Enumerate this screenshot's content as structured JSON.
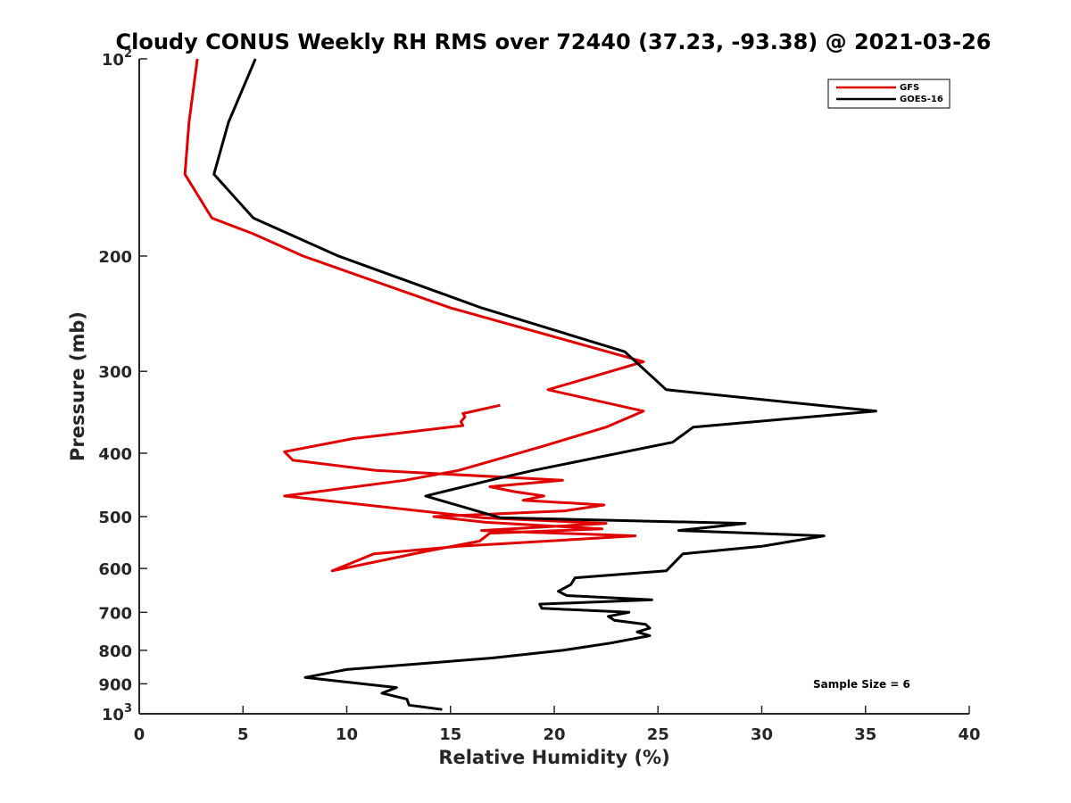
{
  "chart_data": {
    "type": "line",
    "title": "Cloudy CONUS Weekly RH RMS over 72440 (37.23, -93.38) @ 2021-03-26",
    "xlabel": "Relative Humidity (%)",
    "ylabel": "Pressure (mb)",
    "xlim": [
      0,
      40
    ],
    "ylim": [
      100,
      1000
    ],
    "y_scale": "log",
    "y_reversed": true,
    "x_ticks": [
      "0",
      "5",
      "10",
      "15",
      "20",
      "25",
      "30",
      "35",
      "40"
    ],
    "y_ticks": [
      {
        "value": 100,
        "base": "10",
        "exp": "2"
      },
      {
        "value": 200,
        "label": "200"
      },
      {
        "value": 300,
        "label": "300"
      },
      {
        "value": 400,
        "label": "400"
      },
      {
        "value": 500,
        "label": "500"
      },
      {
        "value": 600,
        "label": "600"
      },
      {
        "value": 700,
        "label": "700"
      },
      {
        "value": 800,
        "label": "800"
      },
      {
        "value": 900,
        "label": "900"
      },
      {
        "value": 1000,
        "base": "10",
        "exp": "3"
      }
    ],
    "grid": false,
    "legend": "top-right",
    "series": [
      {
        "name": "GFS",
        "color": "#e00000",
        "points": [
          [
            2.8,
            100
          ],
          [
            2.4,
            125
          ],
          [
            2.2,
            150
          ],
          [
            3.5,
            175
          ],
          [
            5.5,
            185
          ],
          [
            7.9,
            200
          ],
          [
            15.0,
            240
          ],
          [
            24.3,
            290
          ],
          [
            19.7,
            320
          ],
          [
            24.3,
            345
          ],
          [
            22.5,
            365
          ],
          [
            19.5,
            390
          ],
          [
            15.4,
            425
          ],
          [
            12.8,
            440
          ],
          [
            7.0,
            465
          ],
          [
            16.5,
            502
          ],
          [
            22.5,
            512
          ],
          [
            16.5,
            525
          ],
          [
            23.9,
            535
          ],
          [
            15.4,
            555
          ],
          [
            11.3,
            570
          ],
          [
            9.3,
            605
          ],
          [
            13.8,
            565
          ],
          [
            16.4,
            545
          ],
          [
            16.9,
            530
          ],
          [
            22.3,
            522
          ],
          [
            16.7,
            510
          ],
          [
            14.2,
            500
          ],
          [
            20.5,
            490
          ],
          [
            22.4,
            480
          ],
          [
            18.5,
            472
          ],
          [
            19.5,
            465
          ],
          [
            18.1,
            458
          ],
          [
            16.9,
            450
          ],
          [
            20.4,
            440
          ],
          [
            11.4,
            425
          ],
          [
            7.4,
            410
          ],
          [
            7.0,
            398
          ],
          [
            10.3,
            380
          ],
          [
            15.6,
            363
          ],
          [
            15.5,
            358
          ],
          [
            15.7,
            352
          ],
          [
            15.6,
            348
          ],
          [
            17.4,
            338
          ]
        ]
      },
      {
        "name": "GOES-16",
        "color": "#000000",
        "points": [
          [
            5.6,
            100
          ],
          [
            4.3,
            125
          ],
          [
            3.6,
            150
          ],
          [
            5.5,
            175
          ],
          [
            9.6,
            200
          ],
          [
            16.5,
            240
          ],
          [
            23.4,
            280
          ],
          [
            25.4,
            320
          ],
          [
            35.5,
            345
          ],
          [
            26.7,
            365
          ],
          [
            25.7,
            385
          ],
          [
            19.0,
            425
          ],
          [
            16.9,
            440
          ],
          [
            13.8,
            465
          ],
          [
            17.4,
            502
          ],
          [
            29.2,
            512
          ],
          [
            26.0,
            525
          ],
          [
            33.0,
            535
          ],
          [
            30.0,
            555
          ],
          [
            26.2,
            570
          ],
          [
            25.4,
            605
          ],
          [
            21.0,
            620
          ],
          [
            20.8,
            635
          ],
          [
            20.2,
            650
          ],
          [
            20.6,
            660
          ],
          [
            24.7,
            670
          ],
          [
            19.3,
            680
          ],
          [
            19.4,
            690
          ],
          [
            23.6,
            700
          ],
          [
            22.6,
            710
          ],
          [
            22.9,
            720
          ],
          [
            24.4,
            730
          ],
          [
            24.6,
            740
          ],
          [
            24.0,
            750
          ],
          [
            24.6,
            760
          ],
          [
            22.7,
            780
          ],
          [
            20.4,
            800
          ],
          [
            17.0,
            822
          ],
          [
            10.0,
            856
          ],
          [
            8.0,
            880
          ],
          [
            12.4,
            912
          ],
          [
            11.7,
            930
          ],
          [
            12.9,
            950
          ],
          [
            13.0,
            970
          ],
          [
            14.6,
            985
          ]
        ]
      }
    ],
    "annotation": "Sample Size = 6"
  }
}
